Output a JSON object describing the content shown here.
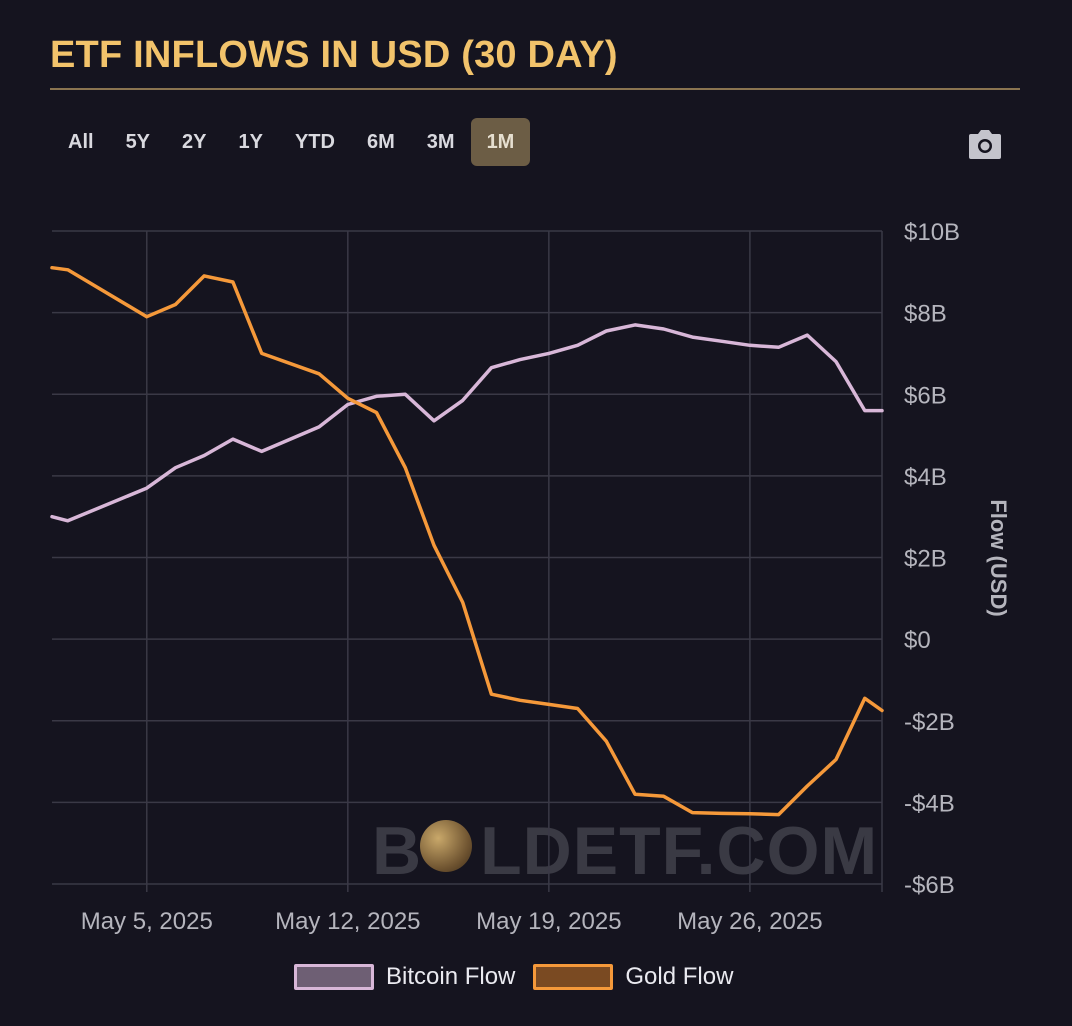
{
  "title": "ETF INFLOWS IN USD (30 DAY)",
  "range_buttons": [
    {
      "label": "All",
      "active": false
    },
    {
      "label": "5Y",
      "active": false
    },
    {
      "label": "2Y",
      "active": false
    },
    {
      "label": "1Y",
      "active": false
    },
    {
      "label": "YTD",
      "active": false
    },
    {
      "label": "6M",
      "active": false
    },
    {
      "label": "3M",
      "active": false
    },
    {
      "label": "1M",
      "active": true
    }
  ],
  "camera_icon": "camera-icon",
  "watermark": {
    "left": "B",
    "right": "LDETF.COM"
  },
  "colors": {
    "bitcoin": "#d8b7d8",
    "gold": "#f5993a",
    "title": "#f2c36b",
    "grid": "#3a3946"
  },
  "legend": [
    {
      "label": "Bitcoin Flow",
      "fill": "#6e5f74",
      "stroke": "#d8b7d8"
    },
    {
      "label": "Gold Flow",
      "fill": "#7a4a22",
      "stroke": "#f5993a"
    }
  ],
  "chart_data": {
    "type": "line",
    "title": "ETF INFLOWS IN USD (30 DAY)",
    "xlabel": "",
    "ylabel": "Flow (USD)",
    "ylim": [
      -6,
      10
    ],
    "yticks": [
      10,
      8,
      6,
      4,
      2,
      0,
      -2,
      -4,
      -6
    ],
    "ytick_labels": [
      "$10B",
      "$8B",
      "$6B",
      "$4B",
      "$2B",
      "$0",
      "-$2B",
      "-$4B",
      "-$6B"
    ],
    "xlim": [
      0.2,
      29.1
    ],
    "xticks": [
      3.5,
      10.5,
      17.5,
      24.5
    ],
    "xtick_labels": [
      "May 5, 2025",
      "May 12, 2025",
      "May 19, 2025",
      "May 26, 2025"
    ],
    "grid": true,
    "x": [
      0.2,
      0.75,
      3.5,
      4.5,
      5.5,
      6.5,
      7.5,
      9.5,
      10.5,
      11.5,
      12.5,
      13.5,
      14.5,
      15.5,
      16.5,
      17.5,
      18.5,
      19.5,
      20.5,
      21.5,
      22.5,
      23.5,
      24.5,
      25.5,
      26.5,
      27.5,
      28.5,
      29.1
    ],
    "series": [
      {
        "name": "Bitcoin Flow",
        "values": [
          3.0,
          2.9,
          3.7,
          4.2,
          4.5,
          4.9,
          4.6,
          5.2,
          5.75,
          5.95,
          6.0,
          5.35,
          5.85,
          6.65,
          6.85,
          7.0,
          7.2,
          7.55,
          7.7,
          7.6,
          7.4,
          7.3,
          7.2,
          7.15,
          7.45,
          6.8,
          5.6,
          5.6
        ]
      },
      {
        "name": "Gold Flow",
        "values": [
          9.1,
          9.05,
          7.9,
          8.2,
          8.9,
          8.75,
          7.0,
          6.5,
          5.9,
          5.55,
          4.2,
          2.3,
          0.9,
          -1.35,
          -1.5,
          -1.6,
          -1.7,
          -2.5,
          -3.8,
          -3.85,
          -4.25,
          -4.27,
          -4.28,
          -4.3,
          -3.6,
          -2.95,
          -1.45,
          -1.75
        ]
      }
    ]
  }
}
